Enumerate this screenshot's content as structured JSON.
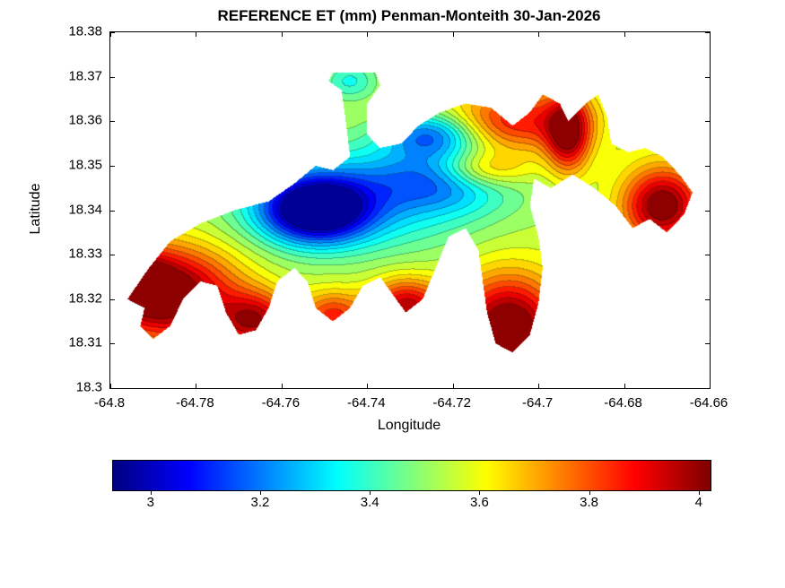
{
  "chart_data": {
    "type": "heatmap",
    "subtype": "filled-contour-map",
    "title": "REFERENCE ET (mm) Penman-Monteith 30-Jan-2026",
    "xlabel": "Longitude",
    "ylabel": "Latitude",
    "xlim": [
      -64.8,
      -64.66
    ],
    "ylim": [
      18.3,
      18.38
    ],
    "xticks": [
      -64.8,
      -64.78,
      -64.76,
      -64.74,
      -64.72,
      -64.7,
      -64.68,
      -64.66
    ],
    "xtick_labels": [
      "-64.8",
      "-64.78",
      "-64.76",
      "-64.74",
      "-64.72",
      "-64.7",
      "-64.68",
      "-64.66"
    ],
    "yticks": [
      18.38,
      18.37,
      18.36,
      18.35,
      18.34,
      18.33,
      18.32,
      18.31,
      18.3
    ],
    "ytick_labels": [
      "18.38",
      "18.37",
      "18.36",
      "18.35",
      "18.34",
      "18.33",
      "18.32",
      "18.31",
      "18.3"
    ],
    "grid": false,
    "legend": "none",
    "colormap": "jet",
    "value_range": [
      2.93,
      4.02
    ],
    "contour_step": 0.05,
    "colorbar": {
      "orientation": "horizontal",
      "position": "below-plot",
      "ticks": [
        3,
        3.2,
        3.4,
        3.6,
        3.8,
        4
      ],
      "tick_labels": [
        "3",
        "3.2",
        "3.4",
        "3.6",
        "3.8",
        "4"
      ],
      "min_color": "#00007f",
      "max_color": "#7f0000"
    },
    "field_base_value": 3.55,
    "field_features": [
      {
        "lon": -64.752,
        "lat": 18.34,
        "amplitude": -0.62,
        "sigma_lon": 0.0085,
        "sigma_lat": 0.005
      },
      {
        "lon": -64.742,
        "lat": 18.343,
        "amplitude": -0.28,
        "sigma_lon": 0.02,
        "sigma_lat": 0.0085
      },
      {
        "lon": -64.722,
        "lat": 18.347,
        "amplitude": -0.25,
        "sigma_lon": 0.011,
        "sigma_lat": 0.005
      },
      {
        "lon": -64.725,
        "lat": 18.357,
        "amplitude": -0.33,
        "sigma_lon": 0.0075,
        "sigma_lat": 0.0035
      },
      {
        "lon": -64.786,
        "lat": 18.321,
        "amplitude": 0.52,
        "sigma_lon": 0.011,
        "sigma_lat": 0.0075
      },
      {
        "lon": -64.793,
        "lat": 18.324,
        "amplitude": 0.25,
        "sigma_lon": 0.005,
        "sigma_lat": 0.005
      },
      {
        "lon": -64.766,
        "lat": 18.315,
        "amplitude": 0.38,
        "sigma_lon": 0.006,
        "sigma_lat": 0.0045
      },
      {
        "lon": -64.748,
        "lat": 18.316,
        "amplitude": 0.3,
        "sigma_lon": 0.005,
        "sigma_lat": 0.004
      },
      {
        "lon": -64.731,
        "lat": 18.318,
        "amplitude": 0.42,
        "sigma_lon": 0.006,
        "sigma_lat": 0.0045
      },
      {
        "lon": -64.707,
        "lat": 18.313,
        "amplitude": 0.55,
        "sigma_lon": 0.0085,
        "sigma_lat": 0.0085
      },
      {
        "lon": -64.705,
        "lat": 18.36,
        "amplitude": 0.33,
        "sigma_lon": 0.011,
        "sigma_lat": 0.005
      },
      {
        "lon": -64.693,
        "lat": 18.357,
        "amplitude": 0.42,
        "sigma_lon": 0.0035,
        "sigma_lat": 0.006
      },
      {
        "lon": -64.671,
        "lat": 18.341,
        "amplitude": 0.5,
        "sigma_lon": 0.0065,
        "sigma_lat": 0.006
      },
      {
        "lon": -64.713,
        "lat": 18.349,
        "amplitude": 0.26,
        "sigma_lon": 0.0075,
        "sigma_lat": 0.003
      },
      {
        "lon": -64.744,
        "lat": 18.369,
        "amplitude": -0.18,
        "sigma_lon": 0.0045,
        "sigma_lat": 0.003
      }
    ],
    "region_outline": [
      [
        -64.796,
        18.32
      ],
      [
        -64.791,
        18.327
      ],
      [
        -64.786,
        18.333
      ],
      [
        -64.779,
        18.337
      ],
      [
        -64.771,
        18.34
      ],
      [
        -64.763,
        18.342
      ],
      [
        -64.757,
        18.346
      ],
      [
        -64.752,
        18.35
      ],
      [
        -64.748,
        18.349
      ],
      [
        -64.744,
        18.352
      ],
      [
        -64.745,
        18.36
      ],
      [
        -64.746,
        18.367
      ],
      [
        -64.749,
        18.369
      ],
      [
        -64.748,
        18.371
      ],
      [
        -64.738,
        18.371
      ],
      [
        -64.737,
        18.368
      ],
      [
        -64.74,
        18.364
      ],
      [
        -64.74,
        18.357
      ],
      [
        -64.737,
        18.354
      ],
      [
        -64.732,
        18.355
      ],
      [
        -64.728,
        18.359
      ],
      [
        -64.723,
        18.362
      ],
      [
        -64.717,
        18.364
      ],
      [
        -64.711,
        18.363
      ],
      [
        -64.706,
        18.359
      ],
      [
        -64.702,
        18.362
      ],
      [
        -64.699,
        18.366
      ],
      [
        -64.695,
        18.364
      ],
      [
        -64.693,
        18.36
      ],
      [
        -64.689,
        18.364
      ],
      [
        -64.686,
        18.366
      ],
      [
        -64.684,
        18.361
      ],
      [
        -64.683,
        18.355
      ],
      [
        -64.679,
        18.353
      ],
      [
        -64.675,
        18.354
      ],
      [
        -64.671,
        18.352
      ],
      [
        -64.667,
        18.348
      ],
      [
        -64.664,
        18.344
      ],
      [
        -64.666,
        18.339
      ],
      [
        -64.67,
        18.335
      ],
      [
        -64.674,
        18.338
      ],
      [
        -64.678,
        18.336
      ],
      [
        -64.682,
        18.341
      ],
      [
        -64.687,
        18.345
      ],
      [
        -64.692,
        18.348
      ],
      [
        -64.697,
        18.345
      ],
      [
        -64.701,
        18.347
      ],
      [
        -64.702,
        18.341
      ],
      [
        -64.7,
        18.334
      ],
      [
        -64.699,
        18.327
      ],
      [
        -64.7,
        18.319
      ],
      [
        -64.702,
        18.312
      ],
      [
        -64.706,
        18.308
      ],
      [
        -64.71,
        18.31
      ],
      [
        -64.712,
        18.317
      ],
      [
        -64.713,
        18.324
      ],
      [
        -64.714,
        18.331
      ],
      [
        -64.717,
        18.336
      ],
      [
        -64.721,
        18.334
      ],
      [
        -64.724,
        18.327
      ],
      [
        -64.727,
        18.32
      ],
      [
        -64.731,
        18.317
      ],
      [
        -64.734,
        18.321
      ],
      [
        -64.737,
        18.325
      ],
      [
        -64.741,
        18.323
      ],
      [
        -64.744,
        18.318
      ],
      [
        -64.748,
        18.315
      ],
      [
        -64.752,
        18.318
      ],
      [
        -64.754,
        18.324
      ],
      [
        -64.757,
        18.327
      ],
      [
        -64.761,
        18.324
      ],
      [
        -64.763,
        18.318
      ],
      [
        -64.766,
        18.313
      ],
      [
        -64.77,
        18.312
      ],
      [
        -64.773,
        18.317
      ],
      [
        -64.775,
        18.323
      ],
      [
        -64.779,
        18.324
      ],
      [
        -64.783,
        18.32
      ],
      [
        -64.786,
        18.314
      ],
      [
        -64.79,
        18.311
      ],
      [
        -64.793,
        18.314
      ],
      [
        -64.792,
        18.318
      ]
    ]
  }
}
